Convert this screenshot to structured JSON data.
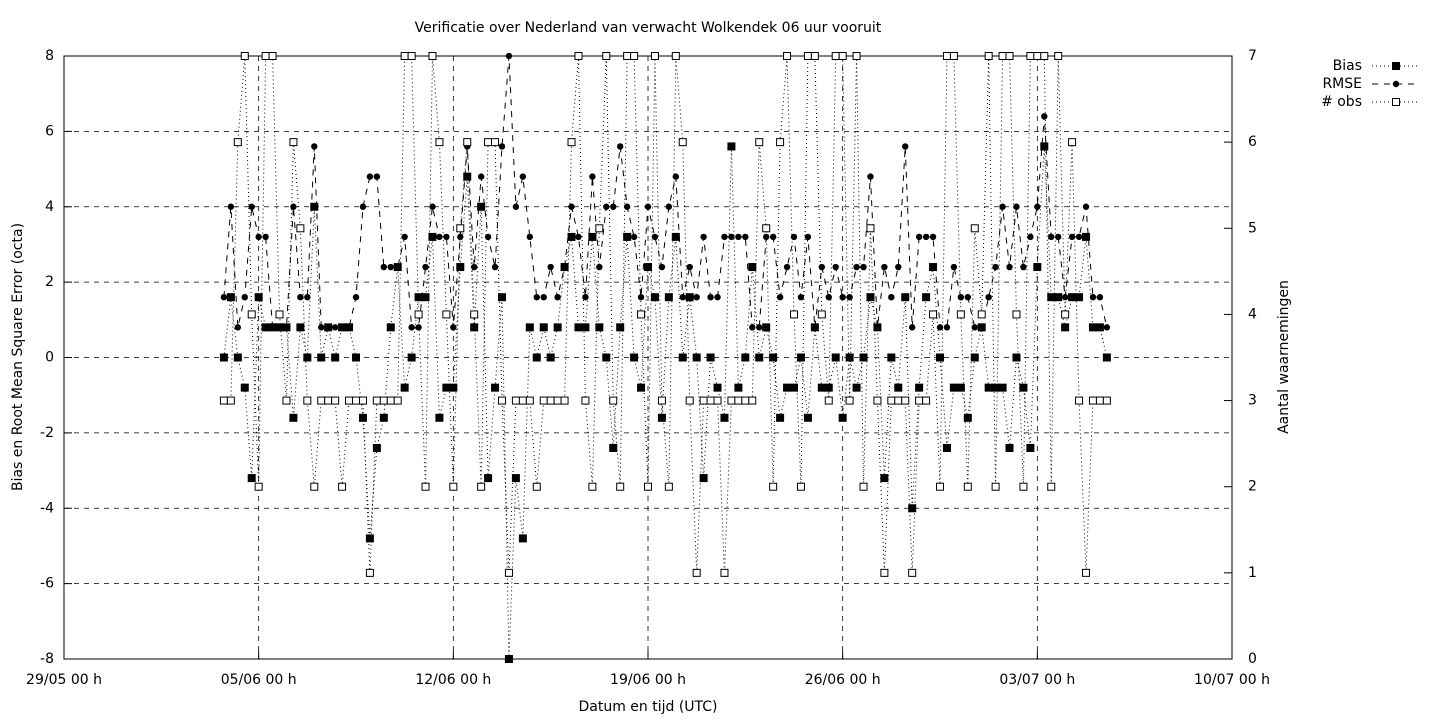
{
  "chart_data": {
    "type": "line",
    "title": "Verificatie over Nederland van verwacht Wolkendek 06 uur vooruit",
    "xlabel": "Datum en tijd (UTC)",
    "ylabel": "Bias en Root Mean Square Error (octa)",
    "y2label": "Aantal waarnemingen",
    "xlim": [
      0,
      42
    ],
    "xticks": [
      {
        "value": 0,
        "label": "29/05 00 h"
      },
      {
        "value": 7,
        "label": "05/06 00 h"
      },
      {
        "value": 14,
        "label": "12/06 00 h"
      },
      {
        "value": 21,
        "label": "19/06 00 h"
      },
      {
        "value": 28,
        "label": "26/06 00 h"
      },
      {
        "value": 35,
        "label": "03/07 00 h"
      },
      {
        "value": 42,
        "label": "10/07 00 h"
      }
    ],
    "ylim": [
      -8,
      8
    ],
    "yticks": [
      -8,
      -6,
      -4,
      -2,
      0,
      2,
      4,
      6,
      8
    ],
    "y2lim": [
      0,
      7
    ],
    "y2ticks": [
      0,
      1,
      2,
      3,
      4,
      5,
      6,
      7
    ],
    "grid": true,
    "legend": "outside-top-right",
    "x": [
      5.75,
      6,
      6.25,
      6.5,
      6.75,
      7,
      7.25,
      7.5,
      7.75,
      8,
      8.25,
      8.5,
      8.75,
      9,
      9.25,
      9.5,
      9.75,
      10,
      10.25,
      10.5,
      10.75,
      11,
      11.25,
      11.5,
      11.75,
      12,
      12.25,
      12.5,
      12.75,
      13,
      13.25,
      13.5,
      13.75,
      14,
      14.25,
      14.5,
      14.75,
      15,
      15.25,
      15.5,
      15.75,
      16,
      16.25,
      16.5,
      16.75,
      17,
      17.25,
      17.5,
      17.75,
      18,
      18.25,
      18.5,
      18.75,
      19,
      19.25,
      19.5,
      19.75,
      20,
      20.25,
      20.5,
      20.75,
      21,
      21.25,
      21.5,
      21.75,
      22,
      22.25,
      22.5,
      22.75,
      23,
      23.25,
      23.5,
      23.75,
      24,
      24.25,
      24.5,
      24.75,
      25,
      25.25,
      25.5,
      25.75,
      26,
      26.25,
      26.5,
      26.75,
      27,
      27.25,
      27.5,
      27.75,
      28,
      28.25,
      28.5,
      28.75,
      29,
      29.25,
      29.5,
      29.75,
      30,
      30.25,
      30.5,
      30.75,
      31,
      31.25,
      31.5,
      31.75,
      32,
      32.25,
      32.5,
      32.75,
      33,
      33.25,
      33.5,
      33.75,
      34,
      34.25,
      34.5,
      34.75,
      35,
      35.25,
      35.5,
      35.75,
      36,
      36.25,
      36.5,
      36.75,
      37,
      37.25,
      37.5
    ],
    "series": [
      {
        "name": "Bias",
        "color": "#000000",
        "marker": "filled-square",
        "line_style": "dotted",
        "values": [
          0,
          1.6,
          0,
          -0.8,
          -3.2,
          1.6,
          0.8,
          0.8,
          0.8,
          0.8,
          -1.6,
          0.8,
          0,
          4,
          0,
          0.8,
          0,
          0.8,
          0.8,
          0,
          -1.6,
          -4.8,
          -2.4,
          -1.6,
          0.8,
          2.4,
          -0.8,
          0,
          1.6,
          1.6,
          3.2,
          -1.6,
          -0.8,
          -0.8,
          2.4,
          4.8,
          0.8,
          4,
          -3.2,
          -0.8,
          1.6,
          -8,
          -3.2,
          -4.8,
          0.8,
          0,
          0.8,
          0,
          0.8,
          2.4,
          3.2,
          0.8,
          0.8,
          3.2,
          0.8,
          0,
          -2.4,
          0.8,
          3.2,
          0,
          -0.8,
          2.4,
          1.6,
          -1.6,
          1.6,
          3.2,
          0,
          1.6,
          0,
          -3.2,
          0,
          -0.8,
          -1.6,
          5.6,
          -0.8,
          0,
          2.4,
          0,
          0.8,
          0,
          -1.6,
          -0.8,
          -0.8,
          0,
          -1.6,
          0.8,
          -0.8,
          -0.8,
          0,
          -1.6,
          0,
          -0.8,
          0,
          1.6,
          0.8,
          -3.2,
          0,
          -0.8,
          1.6,
          -4,
          -0.8,
          1.6,
          2.4,
          0,
          -2.4,
          -0.8,
          -0.8,
          -1.6,
          0,
          0.8,
          -0.8,
          -0.8,
          -0.8,
          -2.4,
          0,
          -0.8,
          -2.4,
          2.4,
          5.6,
          1.6,
          1.6,
          0.8,
          1.6,
          1.6,
          3.2,
          0.8,
          0.8,
          0
        ]
      },
      {
        "name": "RMSE",
        "color": "#000000",
        "marker": "filled-circle",
        "line_style": "dashed",
        "values": [
          1.6,
          4,
          0.8,
          1.6,
          4,
          3.2,
          3.2,
          0.8,
          0.8,
          0.8,
          4,
          1.6,
          1.6,
          5.6,
          0.8,
          0.8,
          0.8,
          0.8,
          0.8,
          1.6,
          4,
          4.8,
          4.8,
          2.4,
          2.4,
          2.4,
          3.2,
          0.8,
          0.8,
          2.4,
          4,
          3.2,
          3.2,
          0.8,
          3.2,
          5.6,
          2.4,
          4.8,
          3.2,
          2.4,
          5.6,
          8,
          4,
          4.8,
          3.2,
          1.6,
          1.6,
          2.4,
          1.6,
          2.4,
          4,
          3.2,
          1.6,
          4.8,
          2.4,
          4,
          4,
          5.6,
          4,
          3.2,
          1.6,
          4,
          3.2,
          2.4,
          4,
          4.8,
          1.6,
          2.4,
          1.6,
          3.2,
          1.6,
          1.6,
          3.2,
          3.2,
          3.2,
          3.2,
          0.8,
          0.8,
          3.2,
          3.2,
          1.6,
          2.4,
          3.2,
          1.6,
          3.2,
          0.8,
          2.4,
          1.6,
          2.4,
          1.6,
          1.6,
          2.4,
          2.4,
          4.8,
          0.8,
          2.4,
          1.6,
          2.4,
          5.6,
          0.8,
          3.2,
          3.2,
          3.2,
          0.8,
          0.8,
          2.4,
          1.6,
          1.6,
          0.8,
          0.8,
          1.6,
          2.4,
          4,
          2.4,
          4,
          2.4,
          3.2,
          4,
          6.4,
          3.2,
          3.2,
          1.6,
          3.2,
          3.2,
          4,
          1.6,
          1.6,
          0.8
        ]
      },
      {
        "name": "# obs",
        "color": "#000000",
        "marker": "open-square",
        "line_style": "dotted",
        "axis": "y2",
        "values": [
          3,
          3,
          6,
          7,
          4,
          2,
          7,
          7,
          4,
          3,
          6,
          5,
          3,
          2,
          3,
          3,
          3,
          2,
          3,
          3,
          3,
          1,
          3,
          3,
          3,
          3,
          7,
          7,
          4,
          2,
          7,
          6,
          4,
          2,
          5,
          6,
          4,
          2,
          6,
          6,
          3,
          1,
          3,
          3,
          3,
          2,
          3,
          3,
          3,
          3,
          6,
          7,
          3,
          2,
          5,
          7,
          3,
          2,
          7,
          7,
          4,
          2,
          7,
          3,
          2,
          7,
          6,
          3,
          1,
          3,
          3,
          3,
          1,
          3,
          3,
          3,
          3,
          6,
          5,
          2,
          6,
          7,
          4,
          2,
          7,
          7,
          4,
          3,
          7,
          7,
          3,
          7,
          2,
          5,
          3,
          1,
          3,
          3,
          3,
          1,
          3,
          3,
          4,
          2,
          7,
          7,
          4,
          2,
          5,
          4,
          7,
          2,
          7,
          7,
          4,
          2,
          7,
          7,
          7,
          2,
          7,
          4,
          6,
          3,
          1,
          3,
          3,
          3
        ]
      }
    ]
  }
}
